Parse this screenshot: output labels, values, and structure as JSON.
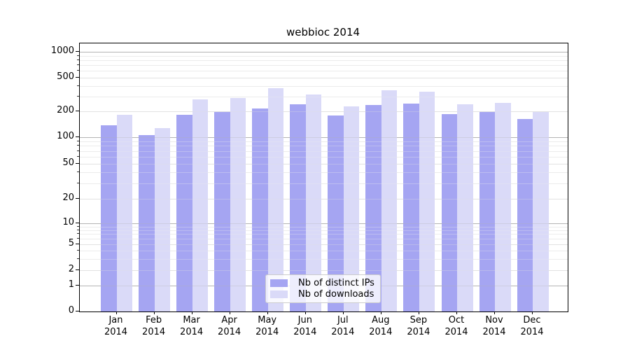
{
  "title": "webbioc 2014",
  "chart_data": {
    "type": "bar",
    "title": "webbioc 2014",
    "categories": [
      "Jan 2014",
      "Feb 2014",
      "Mar 2014",
      "Apr 2014",
      "May 2014",
      "Jun 2014",
      "Jul 2014",
      "Aug 2014",
      "Sep 2014",
      "Oct 2014",
      "Nov 2014",
      "Dec 2014"
    ],
    "series": [
      {
        "name": "Nb of distinct IPs",
        "color": "#a5a5f2",
        "values": [
          138,
          106,
          182,
          196,
          216,
          242,
          179,
          237,
          245,
          186,
          195,
          163
        ]
      },
      {
        "name": "Nb of downloads",
        "color": "#dadaf8",
        "values": [
          183,
          128,
          276,
          287,
          375,
          316,
          228,
          354,
          340,
          242,
          250,
          197
        ]
      }
    ],
    "xlabel": "",
    "ylabel": "",
    "yscale": "symlog",
    "yticks": [
      0,
      1,
      2,
      5,
      10,
      20,
      50,
      100,
      200,
      500,
      1000
    ],
    "ylim": [
      0,
      1250
    ],
    "grid": "both",
    "grid_colors": {
      "decade": "#b4b4b4",
      "labeled": "#e2e2e2",
      "minor": "#ececec"
    },
    "legend_position": "lower center"
  }
}
